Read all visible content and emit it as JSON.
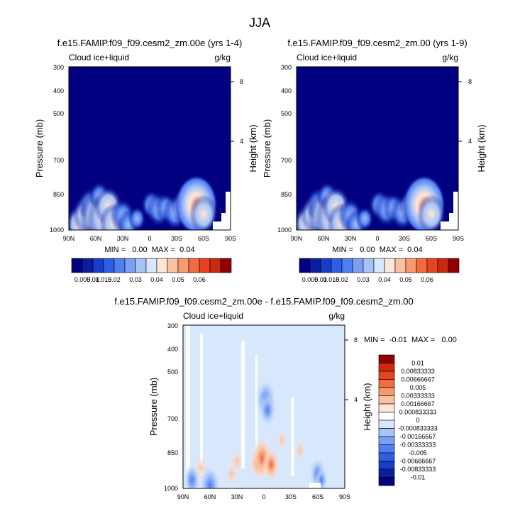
{
  "figure": {
    "title": "JJA"
  },
  "chart_data": [
    {
      "type": "heatmap",
      "title": "f.e15.FAMIP.f09_f09.cesm2_zm.00e (yrs 1-4)",
      "left_label": "Cloud ice+liquid",
      "right_label": "g/kg",
      "ylabel": "Pressure (mb)",
      "ylabel_right": "Height (km)",
      "xlabel": "",
      "x_ticks": [
        "90N",
        "60N",
        "30N",
        "0",
        "30S",
        "60S",
        "90S"
      ],
      "y_ticks": [
        "300",
        "400",
        "500",
        "700",
        "850",
        "1000"
      ],
      "height_ticks": [
        "8",
        "4"
      ],
      "ylim": [
        1000,
        300
      ],
      "stats": "MIN =   0.00  MAX =  0.04",
      "cells": [
        {
          "lat": -78,
          "p": 960,
          "v": 0.02
        },
        {
          "lat": -70,
          "p": 890,
          "v": 0.02
        },
        {
          "lat": -66,
          "p": 830,
          "v": 0.015
        },
        {
          "lat": -58,
          "p": 900,
          "v": 0.03
        },
        {
          "lat": -56,
          "p": 780,
          "v": 0.01
        },
        {
          "lat": -50,
          "p": 920,
          "v": 0.03
        },
        {
          "lat": -46,
          "p": 840,
          "v": 0.02
        },
        {
          "lat": -40,
          "p": 950,
          "v": 0.02
        },
        {
          "lat": -30,
          "p": 900,
          "v": 0.015
        },
        {
          "lat": -24,
          "p": 960,
          "v": 0.01
        },
        {
          "lat": -14,
          "p": 920,
          "v": 0.005
        },
        {
          "lat": 2,
          "p": 830,
          "v": 0.01
        },
        {
          "lat": 10,
          "p": 860,
          "v": 0.015
        },
        {
          "lat": 18,
          "p": 850,
          "v": 0.01
        },
        {
          "lat": 28,
          "p": 880,
          "v": 0.015
        },
        {
          "lat": 40,
          "p": 840,
          "v": 0.02
        },
        {
          "lat": 52,
          "p": 830,
          "v": 0.04
        },
        {
          "lat": 60,
          "p": 890,
          "v": 0.02
        }
      ]
    },
    {
      "type": "heatmap",
      "title": "f.e15.FAMIP.f09_f09.cesm2_zm.00 (yrs 1-9)",
      "left_label": "Cloud ice+liquid",
      "right_label": "g/kg",
      "ylabel": "Pressure (mb)",
      "ylabel_right": "Height (km)",
      "xlabel": "",
      "x_ticks": [
        "90N",
        "60N",
        "30N",
        "0",
        "30S",
        "60S",
        "90S"
      ],
      "y_ticks": [
        "300",
        "400",
        "500",
        "700",
        "850",
        "1000"
      ],
      "height_ticks": [
        "8",
        "4"
      ],
      "ylim": [
        1000,
        300
      ],
      "stats": "MIN =   0.00  MAX =  0.04",
      "cells": [
        {
          "lat": -78,
          "p": 960,
          "v": 0.02
        },
        {
          "lat": -70,
          "p": 890,
          "v": 0.02
        },
        {
          "lat": -66,
          "p": 830,
          "v": 0.015
        },
        {
          "lat": -58,
          "p": 900,
          "v": 0.03
        },
        {
          "lat": -56,
          "p": 780,
          "v": 0.01
        },
        {
          "lat": -50,
          "p": 920,
          "v": 0.03
        },
        {
          "lat": -46,
          "p": 840,
          "v": 0.02
        },
        {
          "lat": -40,
          "p": 950,
          "v": 0.02
        },
        {
          "lat": -30,
          "p": 900,
          "v": 0.015
        },
        {
          "lat": -24,
          "p": 960,
          "v": 0.01
        },
        {
          "lat": -14,
          "p": 920,
          "v": 0.005
        },
        {
          "lat": 2,
          "p": 830,
          "v": 0.01
        },
        {
          "lat": 10,
          "p": 860,
          "v": 0.015
        },
        {
          "lat": 18,
          "p": 850,
          "v": 0.01
        },
        {
          "lat": 28,
          "p": 880,
          "v": 0.015
        },
        {
          "lat": 40,
          "p": 840,
          "v": 0.02
        },
        {
          "lat": 52,
          "p": 830,
          "v": 0.04
        },
        {
          "lat": 60,
          "p": 890,
          "v": 0.02
        }
      ]
    },
    {
      "type": "heatmap",
      "title": "f.e15.FAMIP.f09_f09.cesm2_zm.00e - f.e15.FAMIP.f09_f09.cesm2_zm.00",
      "left_label": "Cloud ice+liquid",
      "right_label": "g/kg",
      "ylabel": "Pressure (mb)",
      "ylabel_right": "Height (km)",
      "xlabel": "",
      "x_ticks": [
        "90N",
        "60N",
        "30N",
        "0",
        "30S",
        "60S",
        "90S"
      ],
      "y_ticks": [
        "300",
        "400",
        "500",
        "700",
        "850",
        "1000"
      ],
      "height_ticks": [
        "8",
        "4"
      ],
      "ylim": [
        1000,
        300
      ],
      "stats": "MIN =  -0.01  MAX =   0.00",
      "cells": [
        {
          "lat": 2,
          "p": 520,
          "v": -0.005
        },
        {
          "lat": 4,
          "p": 560,
          "v": -0.00333333
        },
        {
          "lat": -6,
          "p": 830,
          "v": 0.00333333
        },
        {
          "lat": -2,
          "p": 800,
          "v": 0.005
        },
        {
          "lat": 8,
          "p": 840,
          "v": 0.00333333
        },
        {
          "lat": -30,
          "p": 820,
          "v": 0.00166667
        },
        {
          "lat": -36,
          "p": 900,
          "v": 0.00166667
        },
        {
          "lat": -70,
          "p": 860,
          "v": 0.00166667
        },
        {
          "lat": -56,
          "p": 950,
          "v": 0.00166667
        },
        {
          "lat": -60,
          "p": 980,
          "v": -0.005
        },
        {
          "lat": 60,
          "p": 900,
          "v": -0.00333333
        },
        {
          "lat": 64,
          "p": 940,
          "v": -0.00166667
        },
        {
          "lat": 40,
          "p": 760,
          "v": 0.000833333
        },
        {
          "lat": -80,
          "p": 940,
          "v": -0.00333333
        },
        {
          "lat": 20,
          "p": 700,
          "v": 0.000833333
        }
      ]
    }
  ],
  "colorbar_abs": {
    "labels": [
      "0.005",
      "0.01",
      "0.015",
      "0.02",
      "0.03",
      "0.04",
      "0.05",
      "0.06"
    ],
    "colors": [
      "#000080",
      "#0a1f9c",
      "#1a3cc8",
      "#2f5ee6",
      "#4f7ef2",
      "#7aa0f5",
      "#a6c3f8",
      "#d7e7fc",
      "#fde6d8",
      "#fbc0a0",
      "#f79a70",
      "#f26a40",
      "#e9421f",
      "#c82a10",
      "#900000"
    ]
  },
  "colorbar_diff": {
    "labels": [
      "0.01",
      "0.00833333",
      "0.00666667",
      "0.005",
      "0.00333333",
      "0.00166667",
      "0.000833333",
      "0",
      "-0.000833333",
      "-0.00166667",
      "-0.00333333",
      "-0.005",
      "-0.00666667",
      "-0.00833333",
      "-0.01"
    ],
    "colors": [
      "#900000",
      "#c82a10",
      "#e9421f",
      "#f26a40",
      "#f79a70",
      "#fbc0a0",
      "#fde6d8",
      "#ffffff",
      "#d7e7fc",
      "#a6c3f8",
      "#7aa0f5",
      "#4f7ef2",
      "#2f5ee6",
      "#1a3cc8",
      "#0a1f9c",
      "#000080"
    ]
  }
}
